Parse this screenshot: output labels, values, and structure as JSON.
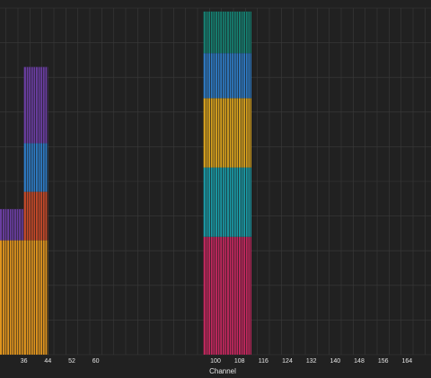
{
  "chart_data": {
    "type": "bar",
    "xlabel": "Channel",
    "ylabel": "",
    "xlim": [
      28,
      172
    ],
    "ylim": [
      0,
      100
    ],
    "x_ticks": [
      36,
      44,
      52,
      60,
      100,
      108,
      116,
      124,
      132,
      140,
      148,
      156,
      164
    ],
    "grid": true,
    "stacked": true,
    "bars": [
      {
        "x_start": 28,
        "x_end": 36,
        "segments": [
          {
            "value": 33,
            "color": "#e0951f"
          },
          {
            "value": 9,
            "color": "#6a3ea1"
          }
        ]
      },
      {
        "x_start": 36,
        "x_end": 44,
        "segments": [
          {
            "value": 33,
            "color": "#e0951f"
          },
          {
            "value": 14,
            "color": "#c54a2a"
          },
          {
            "value": 14,
            "color": "#2e7bc4"
          },
          {
            "value": 22,
            "color": "#6a3ea1"
          }
        ]
      },
      {
        "x_start": 96,
        "x_end": 112,
        "segments": [
          {
            "value": 34,
            "color": "#c2285e"
          },
          {
            "value": 20,
            "color": "#1a9aa6"
          },
          {
            "value": 20,
            "color": "#d8a21e"
          },
          {
            "value": 13,
            "color": "#2e7bc4"
          },
          {
            "value": 12,
            "color": "#168072"
          }
        ]
      }
    ]
  }
}
